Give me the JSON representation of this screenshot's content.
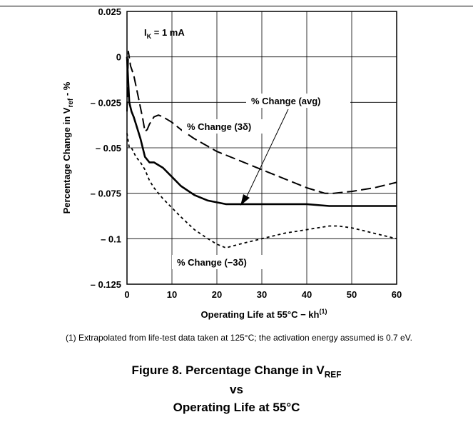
{
  "chart_data": {
    "type": "line",
    "xlabel": "Operating Life at 55°C − kh",
    "xlabel_sup": "(1)",
    "ylabel_main": "Percentage Change in V",
    "ylabel_sub": "ref",
    "ylabel_tail": " - %",
    "xlim": [
      0,
      60
    ],
    "ylim": [
      -0.125,
      0.025
    ],
    "x_ticks": [
      0,
      10,
      20,
      30,
      40,
      50,
      60
    ],
    "x_tick_labels": [
      "0",
      "10",
      "20",
      "30",
      "40",
      "50",
      "60"
    ],
    "y_ticks": [
      0.025,
      0,
      -0.025,
      -0.05,
      -0.075,
      -0.1,
      -0.125
    ],
    "y_tick_labels": [
      "0.025",
      "0",
      "– 0.025",
      "– 0.05",
      "– 0.075",
      "– 0.1",
      "– 0.125"
    ],
    "grid": true,
    "condition_main": "I",
    "condition_sub": "K",
    "condition_tail": " = 1 mA",
    "series": [
      {
        "name": "% Change (avg)",
        "style": "solid",
        "x": [
          0,
          0.2,
          0.5,
          1,
          1.5,
          2,
          3,
          4,
          5,
          6,
          8,
          10,
          12,
          15,
          18,
          20,
          22,
          25,
          30,
          35,
          40,
          45,
          50,
          55,
          60
        ],
        "y": [
          0,
          -0.01,
          -0.025,
          -0.03,
          -0.033,
          -0.037,
          -0.045,
          -0.055,
          -0.058,
          -0.058,
          -0.061,
          -0.066,
          -0.071,
          -0.076,
          -0.079,
          -0.08,
          -0.081,
          -0.081,
          -0.081,
          -0.081,
          -0.081,
          -0.082,
          -0.082,
          -0.082,
          -0.082
        ]
      },
      {
        "name": "% Change (3δ)",
        "style": "long-dash",
        "x": [
          0,
          0.3,
          0.8,
          1.5,
          2.5,
          3.5,
          4,
          4.5,
          5,
          6,
          7,
          8,
          10,
          12,
          15,
          20,
          25,
          30,
          35,
          40,
          44,
          46,
          50,
          55,
          60
        ],
        "y": [
          -0.03,
          0.003,
          -0.005,
          -0.01,
          -0.022,
          -0.034,
          -0.041,
          -0.04,
          -0.037,
          -0.033,
          -0.032,
          -0.033,
          -0.036,
          -0.04,
          -0.045,
          -0.052,
          -0.057,
          -0.062,
          -0.067,
          -0.072,
          -0.075,
          -0.075,
          -0.074,
          -0.072,
          -0.069
        ]
      },
      {
        "name": "% Change (−3δ)",
        "style": "short-dash",
        "x": [
          0,
          0.5,
          1,
          2,
          3,
          4,
          5,
          6,
          8,
          10,
          12,
          15,
          18,
          20,
          22,
          25,
          30,
          35,
          40,
          45,
          47,
          50,
          55,
          60
        ],
        "y": [
          -0.042,
          -0.05,
          -0.05,
          -0.055,
          -0.058,
          -0.062,
          -0.068,
          -0.072,
          -0.078,
          -0.083,
          -0.088,
          -0.095,
          -0.1,
          -0.103,
          -0.105,
          -0.103,
          -0.1,
          -0.097,
          -0.095,
          -0.093,
          -0.093,
          -0.094,
          -0.097,
          -0.1
        ]
      }
    ],
    "labels": {
      "avg": "% Change  (avg)",
      "plus3": "% Change  (3δ)",
      "minus3": "% Change  (−3δ)"
    }
  },
  "footnote": "(1) Extrapolated from life-test data taken at 125°C; the activation energy assumed is 0.7 eV.",
  "caption": {
    "line1_main": "Figure 8. Percentage Change in V",
    "line1_sub": "REF",
    "line2": "vs",
    "line3": "Operating Life at 55°C"
  }
}
